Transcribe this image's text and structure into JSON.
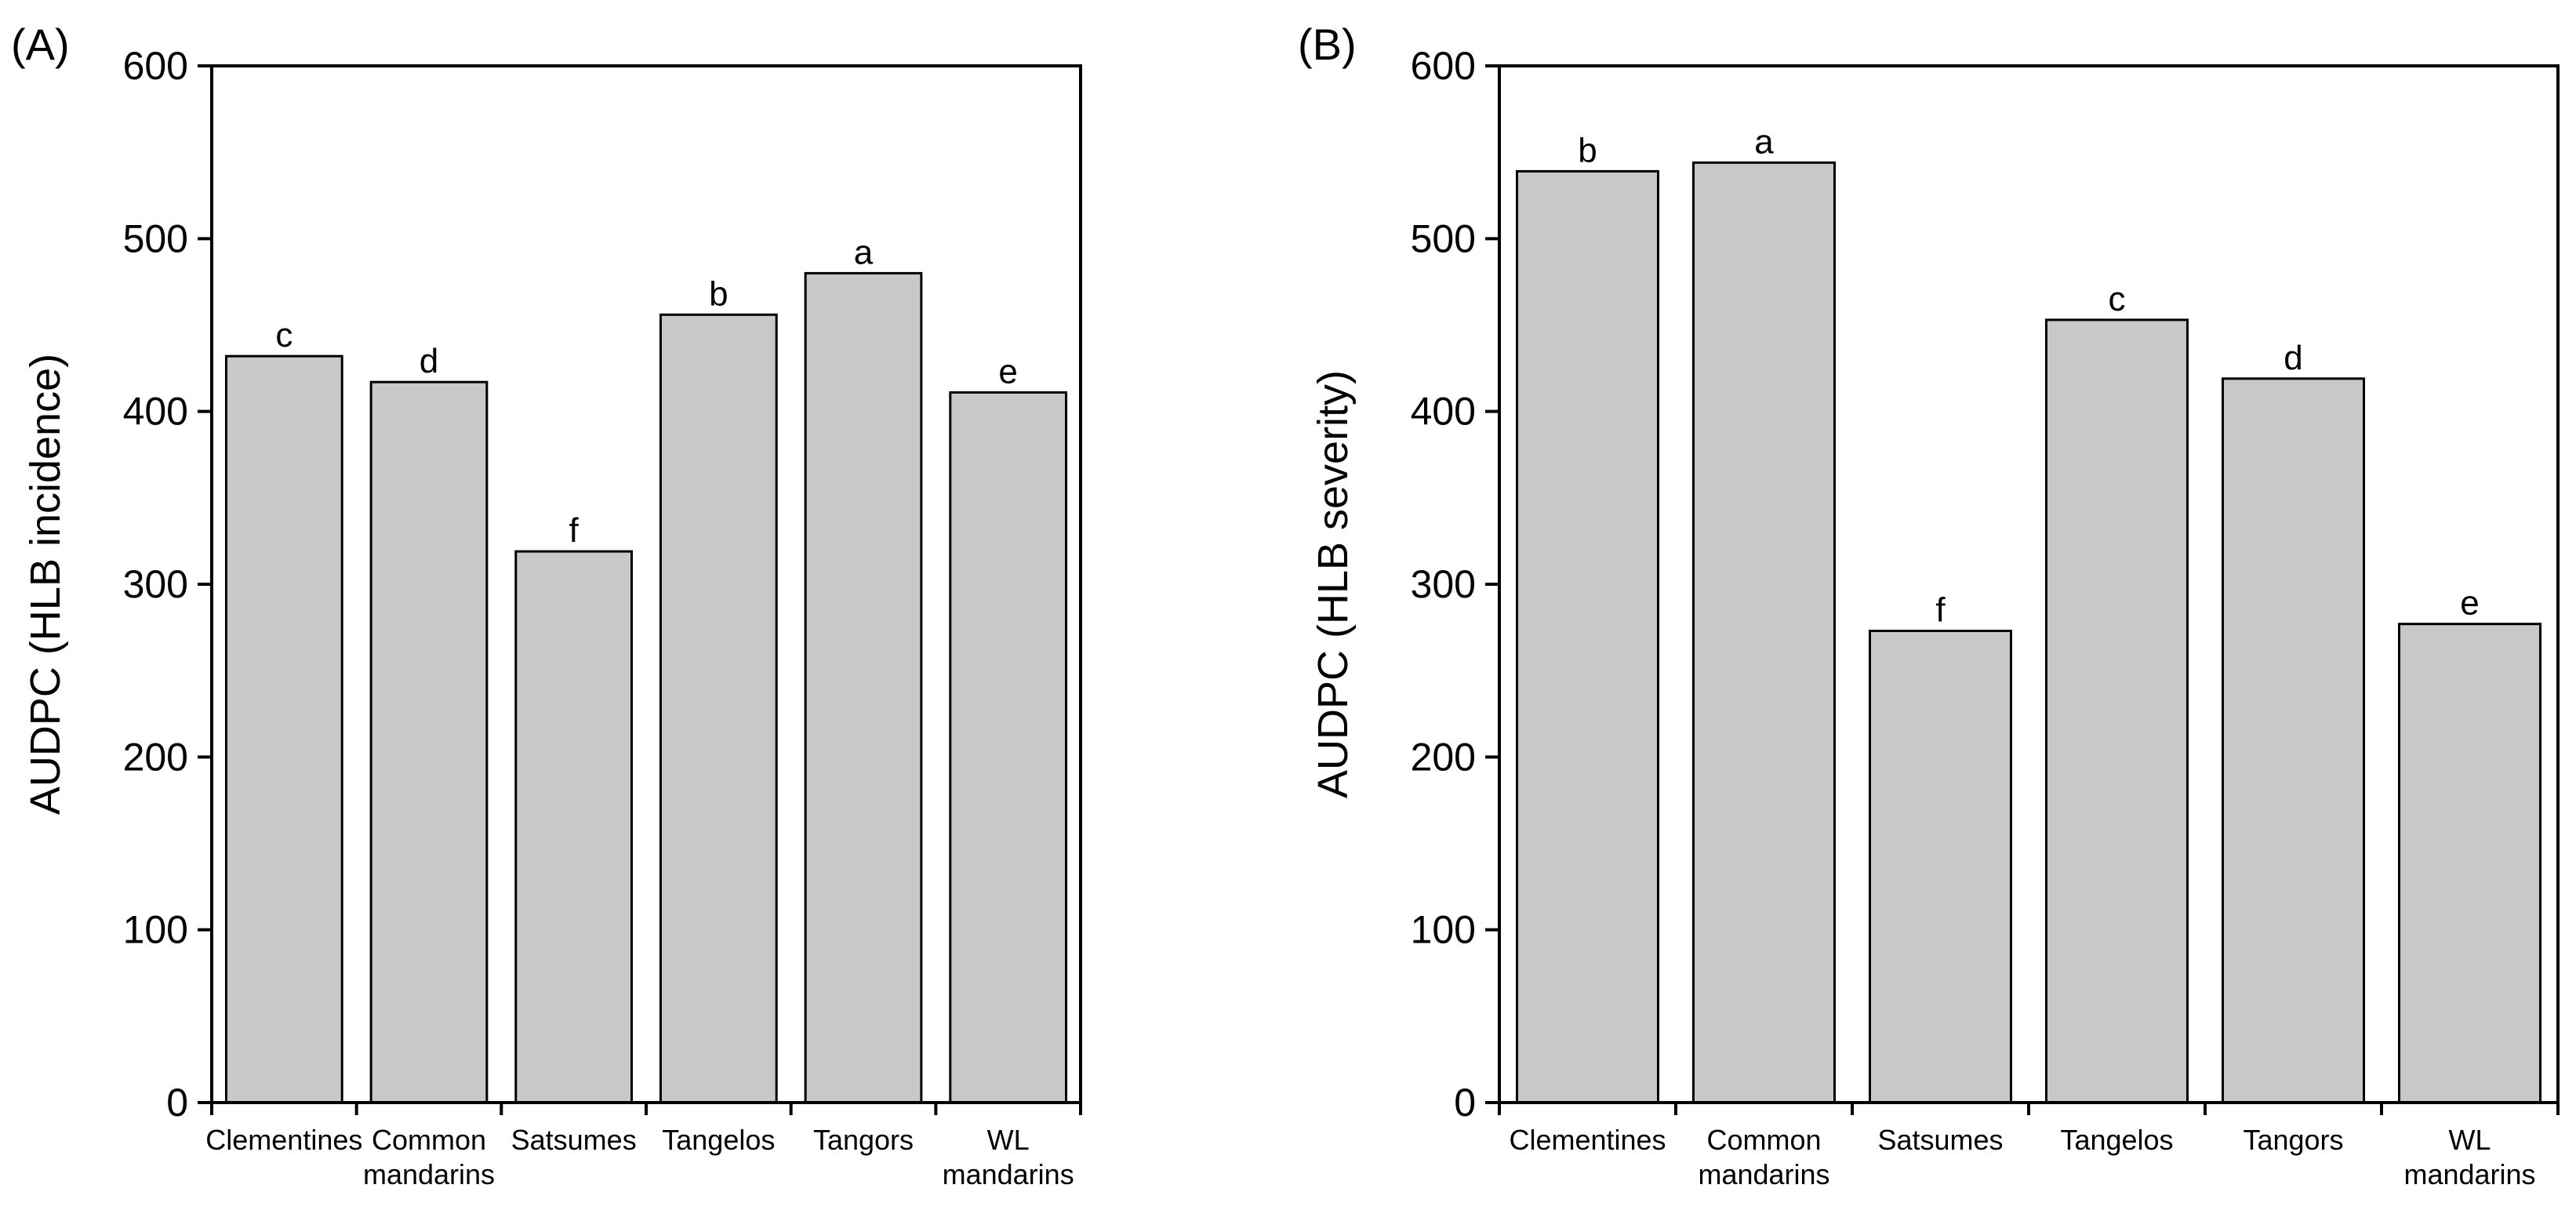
{
  "chart_data": [
    {
      "type": "bar",
      "panel_label": "(A)",
      "title": "",
      "xlabel": "",
      "ylabel": "AUDPC (HLB incidence)",
      "ylim": [
        0,
        600
      ],
      "yticks": [
        0,
        100,
        200,
        300,
        400,
        500,
        600
      ],
      "categories": [
        [
          "Clementines"
        ],
        [
          "Common",
          "mandarins"
        ],
        [
          "Satsumes"
        ],
        [
          "Tangelos"
        ],
        [
          "Tangors"
        ],
        [
          "WL",
          "mandarins"
        ]
      ],
      "values": [
        432,
        417,
        319,
        456,
        480,
        411
      ],
      "letters": [
        "c",
        "d",
        "f",
        "b",
        "a",
        "e"
      ],
      "bar_color": "#c8c8c8"
    },
    {
      "type": "bar",
      "panel_label": "(B)",
      "title": "",
      "xlabel": "",
      "ylabel": "AUDPC (HLB severity)",
      "ylim": [
        0,
        600
      ],
      "yticks": [
        0,
        100,
        200,
        300,
        400,
        500,
        600
      ],
      "categories": [
        [
          "Clementines"
        ],
        [
          "Common",
          "mandarins"
        ],
        [
          "Satsumes"
        ],
        [
          "Tangelos"
        ],
        [
          "Tangors"
        ],
        [
          "WL",
          "mandarins"
        ]
      ],
      "values": [
        539,
        544,
        273,
        453,
        419,
        277
      ],
      "letters": [
        "b",
        "a",
        "f",
        "c",
        "d",
        "e"
      ],
      "bar_color": "#c8c8c8"
    }
  ]
}
